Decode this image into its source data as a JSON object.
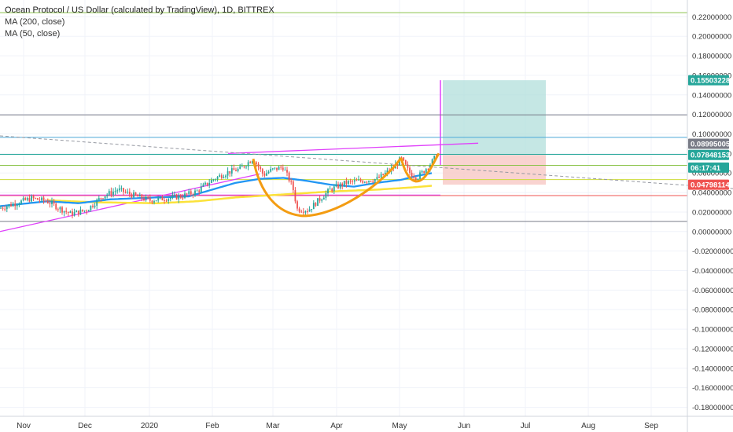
{
  "legend": {
    "title": "Ocean Protocol / US Dollar (calculated by TradingView), 1D, BITTREX",
    "ma200": "MA (200, close)",
    "ma50": "MA (50, close)"
  },
  "colors": {
    "up": "#26a69a",
    "down": "#ef5350",
    "ma50": "#2196f3",
    "ma200": "#fbe23a",
    "cup": "#f39c12",
    "trend": "#e040fb",
    "target_zone": "#b2dfdb",
    "stop_zone": "#f8c8c4"
  },
  "chart_data": {
    "type": "candlestick",
    "title": "Ocean Protocol / US Dollar (calculated by TradingView), 1D, BITTREX",
    "ylim": [
      -0.19,
      0.23
    ],
    "y_ticks": [
      0.22,
      0.2,
      0.18,
      0.16,
      0.14,
      0.12,
      0.1,
      0.08,
      0.06,
      0.04,
      0.02,
      0.0,
      -0.02,
      -0.04,
      -0.06,
      -0.08,
      -0.1,
      -0.12,
      -0.14,
      -0.16,
      -0.18
    ],
    "y_tick_labels": [
      "0.22000000",
      "0.20000000",
      "0.18000000",
      "0.16000000",
      "0.14000000",
      "0.12000000",
      "0.10000000",
      "0.08000000",
      "0.06000000",
      "0.04000000",
      "0.02000000",
      "0.00000000",
      "-0.02000000",
      "-0.04000000",
      "-0.06000000",
      "-0.08000000",
      "-0.10000000",
      "-0.12000000",
      "-0.14000000",
      "-0.16000000",
      "-0.18000000"
    ],
    "x_labels": [
      "Nov",
      "Dec",
      "2020",
      "Feb",
      "Mar",
      "Apr",
      "May",
      "Jun",
      "Jul",
      "Aug",
      "Sep"
    ],
    "price_tags": [
      {
        "label": "0.15503228",
        "value": 0.15503228,
        "color": "#26a69a"
      },
      {
        "label": "0.08995005",
        "value": 0.08995005,
        "color": "#787b86"
      },
      {
        "label": "0.07848153",
        "value": 0.07848153,
        "color": "#26a69a"
      },
      {
        "label": "06:17:41",
        "value": 0.0655,
        "color": "#26a69a"
      },
      {
        "label": "0.04798114",
        "value": 0.04798114,
        "color": "#ef5350"
      }
    ],
    "horizontal_levels": [
      {
        "value": 0.2242,
        "color": "#8bc34a"
      },
      {
        "value": 0.1195,
        "color": "#787b86"
      },
      {
        "value": 0.0965,
        "color": "#4aa8d8"
      },
      {
        "value": 0.0791,
        "color": "#26a69a"
      },
      {
        "value": 0.0678,
        "color": "#8bc34a"
      },
      {
        "value": 0.0532,
        "color": "#cddc39"
      },
      {
        "value": 0.0368,
        "color": "#ef5350"
      },
      {
        "value": 0.0104,
        "color": "#787b86"
      }
    ],
    "position": {
      "entry": 0.0785,
      "target": 0.155,
      "stop": 0.048
    },
    "series_keyframes": {
      "price": [
        [
          0,
          0.024
        ],
        [
          40,
          0.034
        ],
        [
          60,
          0.031
        ],
        [
          75,
          0.024
        ],
        [
          90,
          0.018
        ],
        [
          110,
          0.022
        ],
        [
          130,
          0.036
        ],
        [
          150,
          0.043
        ],
        [
          170,
          0.037
        ],
        [
          190,
          0.032
        ],
        [
          210,
          0.034
        ],
        [
          230,
          0.036
        ],
        [
          250,
          0.041
        ],
        [
          270,
          0.053
        ],
        [
          290,
          0.061
        ],
        [
          305,
          0.064
        ],
        [
          322,
          0.075
        ],
        [
          335,
          0.058
        ],
        [
          345,
          0.063
        ],
        [
          360,
          0.066
        ],
        [
          372,
          0.046
        ],
        [
          378,
          0.023
        ],
        [
          392,
          0.022
        ],
        [
          405,
          0.032
        ],
        [
          420,
          0.043
        ],
        [
          440,
          0.05
        ],
        [
          460,
          0.052
        ],
        [
          480,
          0.054
        ],
        [
          500,
          0.065
        ],
        [
          510,
          0.075
        ],
        [
          520,
          0.061
        ],
        [
          530,
          0.055
        ],
        [
          540,
          0.063
        ],
        [
          548,
          0.07
        ],
        [
          555,
          0.078
        ]
      ],
      "ma50": [
        [
          0,
          0.026
        ],
        [
          60,
          0.031
        ],
        [
          100,
          0.029
        ],
        [
          140,
          0.033
        ],
        [
          200,
          0.035
        ],
        [
          240,
          0.036
        ],
        [
          270,
          0.043
        ],
        [
          300,
          0.05
        ],
        [
          330,
          0.054
        ],
        [
          360,
          0.055
        ],
        [
          390,
          0.052
        ],
        [
          420,
          0.048
        ],
        [
          450,
          0.046
        ],
        [
          480,
          0.05
        ],
        [
          510,
          0.053
        ],
        [
          530,
          0.057
        ],
        [
          550,
          0.06
        ]
      ],
      "ma200": [
        [
          60,
          0.032
        ],
        [
          120,
          0.03
        ],
        [
          200,
          0.029
        ],
        [
          250,
          0.031
        ],
        [
          300,
          0.035
        ],
        [
          360,
          0.038
        ],
        [
          420,
          0.041
        ],
        [
          480,
          0.043
        ],
        [
          520,
          0.045
        ],
        [
          550,
          0.047
        ]
      ]
    }
  }
}
